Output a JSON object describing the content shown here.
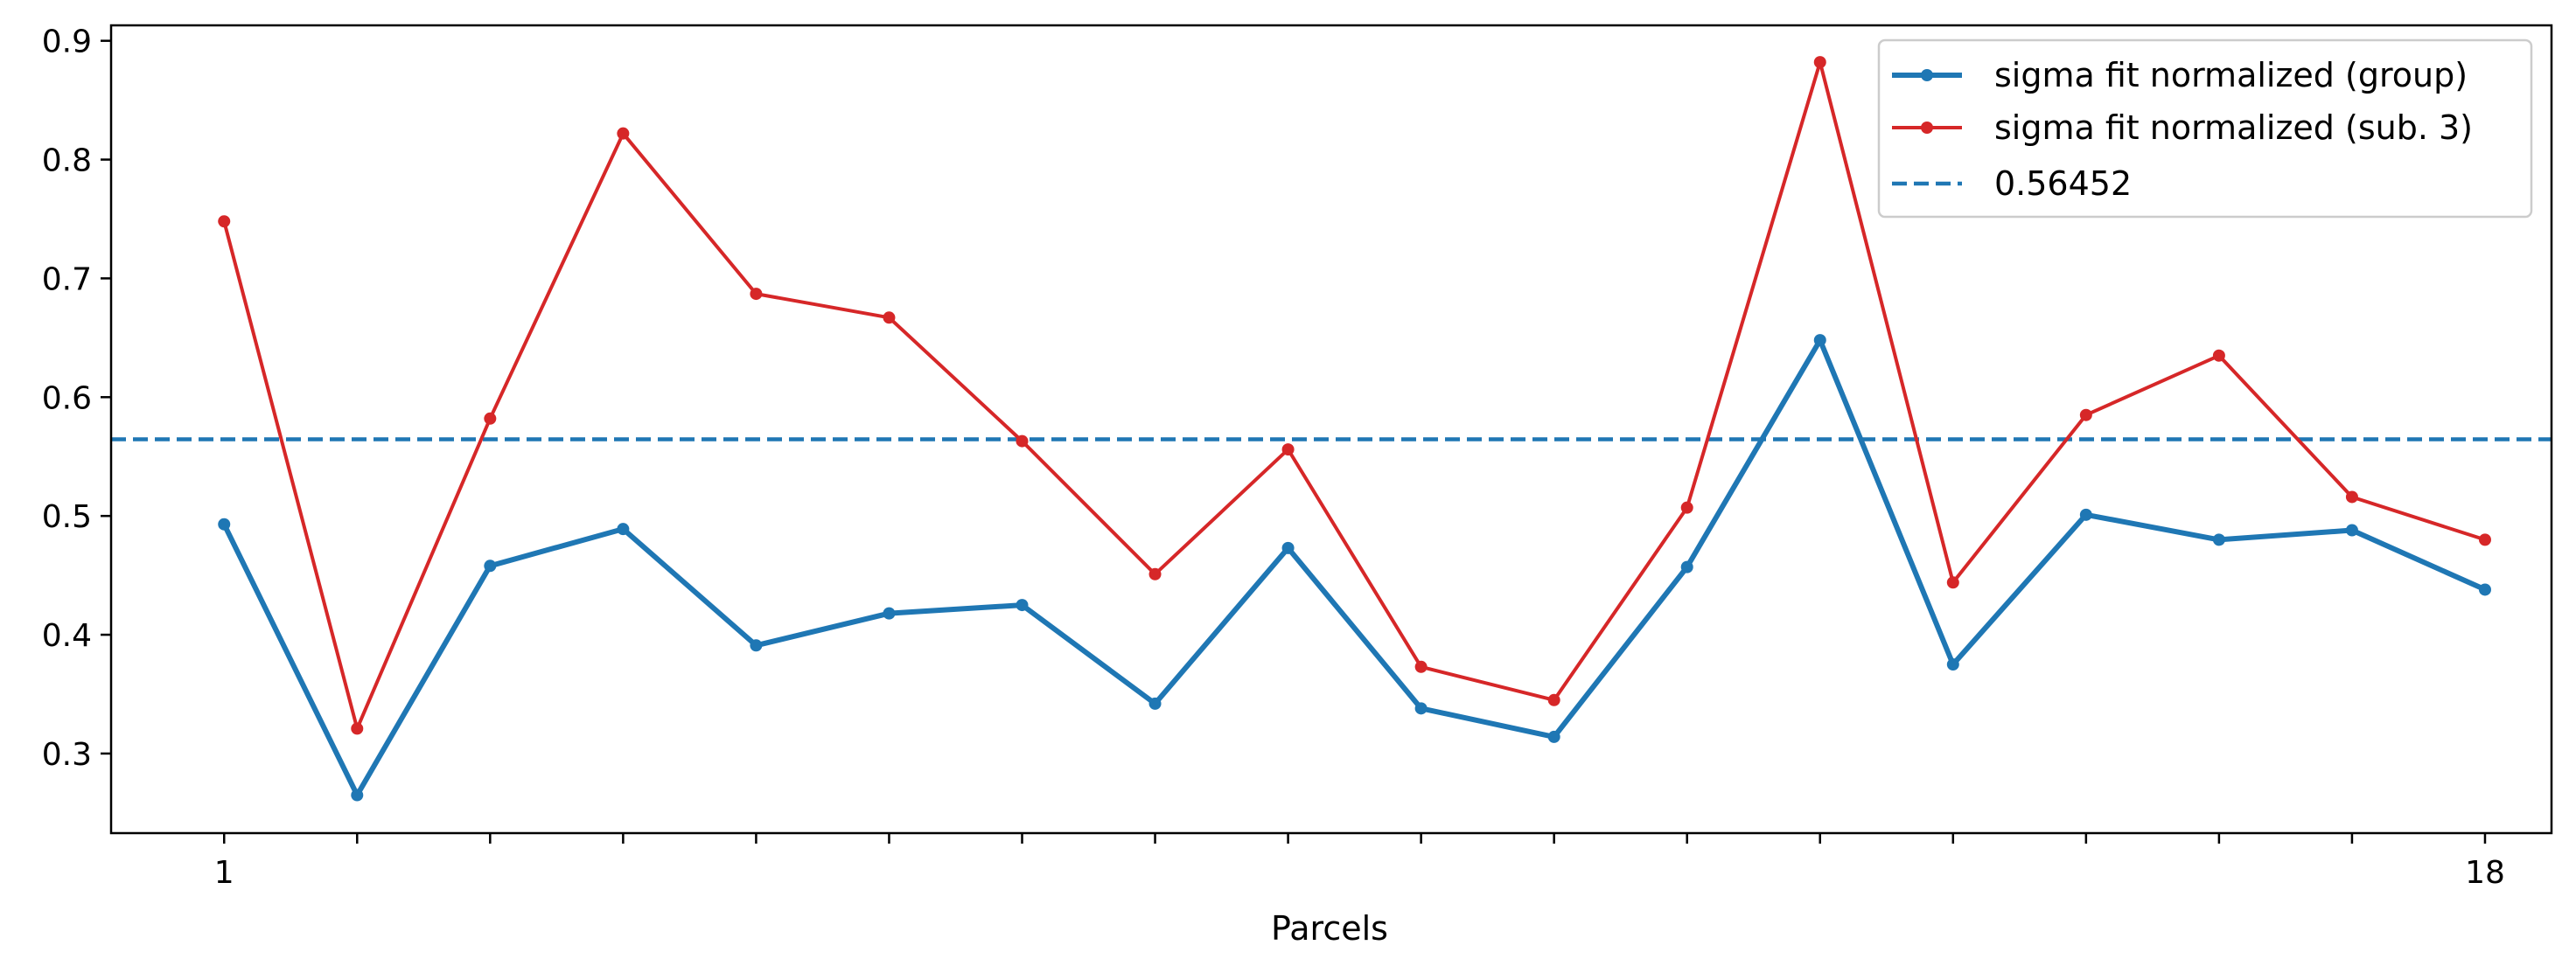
{
  "chart_data": {
    "type": "line",
    "title": "",
    "xlabel": "Parcels",
    "ylabel": "",
    "x": [
      1,
      2,
      3,
      4,
      5,
      6,
      7,
      8,
      9,
      10,
      11,
      12,
      13,
      14,
      15,
      16,
      17,
      18
    ],
    "xtick_labels": [
      {
        "x": 1,
        "label": "1"
      },
      {
        "x": 18,
        "label": "18"
      }
    ],
    "xlim": [
      0.15,
      18.5
    ],
    "ylim": [
      0.233,
      0.913
    ],
    "yticks": [
      0.3,
      0.4,
      0.5,
      0.6,
      0.7,
      0.8,
      0.9
    ],
    "ytick_labels": [
      "0.3",
      "0.4",
      "0.5",
      "0.6",
      "0.7",
      "0.8",
      "0.9"
    ],
    "grid": false,
    "legend_position": "top-right",
    "series": [
      {
        "name": "sigma fit normalized (group)",
        "color": "#1f77b4",
        "style": "solid-thick-markers",
        "values": [
          0.493,
          0.265,
          0.458,
          0.489,
          0.391,
          0.418,
          0.425,
          0.342,
          0.473,
          0.338,
          0.314,
          0.457,
          0.648,
          0.375,
          0.501,
          0.48,
          0.488,
          0.438
        ]
      },
      {
        "name": "sigma fit normalized (sub. 3)",
        "color": "#d62728",
        "style": "solid-markers",
        "values": [
          0.748,
          0.321,
          0.582,
          0.822,
          0.687,
          0.667,
          0.563,
          0.451,
          0.556,
          0.373,
          0.345,
          0.507,
          0.882,
          0.444,
          0.585,
          0.635,
          0.516,
          0.48
        ]
      },
      {
        "name": "0.56452",
        "color": "#1f77b4",
        "style": "dashed-hline",
        "value": 0.56452
      }
    ]
  }
}
